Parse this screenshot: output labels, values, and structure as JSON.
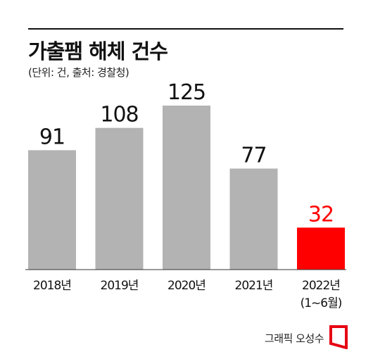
{
  "header": {
    "title": "가출팸 해체 건수",
    "subtitle": "(단위: 건, 출처: 경찰청)"
  },
  "chart_data": {
    "type": "bar",
    "title": "가출팸 해체 건수",
    "subtitle": "(단위: 건, 출처: 경찰청)",
    "categories": [
      "2018년",
      "2019년",
      "2020년",
      "2021년",
      "2022년"
    ],
    "category_sublabels": [
      "",
      "",
      "",
      "",
      "(1~6월)"
    ],
    "values": [
      91,
      108,
      125,
      77,
      32
    ],
    "bar_colors": [
      "#b3b3b3",
      "#b3b3b3",
      "#b3b3b3",
      "#b3b3b3",
      "#ff0000"
    ],
    "value_label_colors": [
      "#111111",
      "#111111",
      "#111111",
      "#111111",
      "#ff0000"
    ],
    "xlabel": "",
    "ylabel": "",
    "ylim": [
      0,
      125
    ],
    "grid": false,
    "legend": "none"
  },
  "footer": {
    "credit": "그래픽 오성수",
    "logo_icon": "publisher-logo-icon",
    "logo_color": "#e60012"
  }
}
